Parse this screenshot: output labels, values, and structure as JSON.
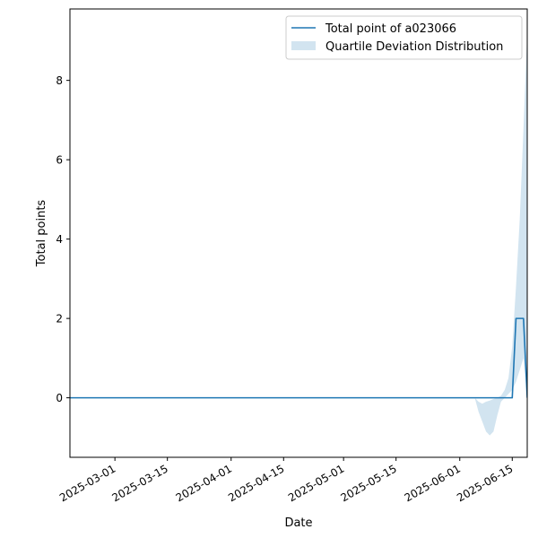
{
  "chart_data": {
    "type": "line",
    "xlabel": "Date",
    "ylabel": "Total points",
    "xlim": [
      "2025-02-17",
      "2025-06-19"
    ],
    "ylim": [
      -1.5,
      9.8
    ],
    "grid": false,
    "legend_position": "top-right",
    "x_ticks": [
      "2025-03-01",
      "2025-03-15",
      "2025-04-01",
      "2025-04-15",
      "2025-05-01",
      "2025-05-15",
      "2025-06-01",
      "2025-06-15"
    ],
    "y_ticks": [
      0,
      2,
      4,
      6,
      8
    ],
    "series": [
      {
        "name": "Total point of a023066",
        "kind": "line",
        "color": "#1f77b4",
        "x": [
          "2025-02-17",
          "2025-06-15",
          "2025-06-16",
          "2025-06-17",
          "2025-06-18",
          "2025-06-19"
        ],
        "y": [
          0,
          0,
          2,
          2,
          2,
          0
        ]
      },
      {
        "name": "Quartile Deviation Distribution",
        "kind": "band",
        "color": "#1f77b4",
        "opacity": 0.2,
        "x": [
          "2025-06-05",
          "2025-06-06",
          "2025-06-07",
          "2025-06-08",
          "2025-06-09",
          "2025-06-10",
          "2025-06-11",
          "2025-06-12",
          "2025-06-13",
          "2025-06-14",
          "2025-06-15",
          "2025-06-16",
          "2025-06-17",
          "2025-06-18",
          "2025-06-19"
        ],
        "lower": [
          0,
          -0.35,
          -0.6,
          -0.85,
          -0.95,
          -0.85,
          -0.45,
          -0.1,
          0,
          0.1,
          0.2,
          0.4,
          0.7,
          1.0,
          0
        ],
        "upper": [
          0,
          -0.1,
          -0.15,
          -0.1,
          -0.07,
          -0.03,
          0,
          0.05,
          0.2,
          0.5,
          1.3,
          2.8,
          4.5,
          6.8,
          9.2
        ]
      }
    ]
  }
}
